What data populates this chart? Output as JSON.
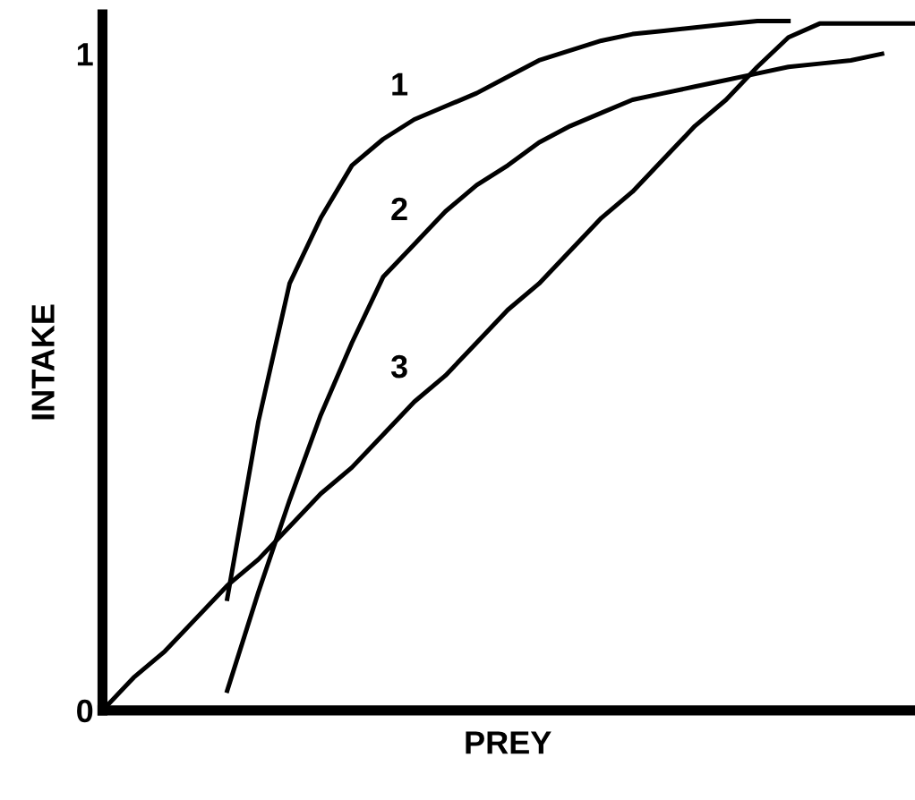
{
  "chart_data": {
    "type": "line",
    "xlabel": "PREY",
    "ylabel": "INTAKE",
    "categories": [
      null,
      null,
      null,
      null,
      null,
      null,
      null,
      null,
      null,
      null,
      null,
      null,
      null,
      null,
      null,
      null,
      null,
      null,
      null,
      null,
      null,
      null,
      null,
      null,
      null,
      null,
      null
    ],
    "series": [
      {
        "name": "1",
        "color": "#000000",
        "values": [
          null,
          null,
          null,
          null,
          0.17,
          0.44,
          0.65,
          0.75,
          0.83,
          0.87,
          0.9,
          0.92,
          0.94,
          0.965,
          0.99,
          1.005,
          1.02,
          1.03,
          1.035,
          1.04,
          1.045,
          1.05,
          1.05,
          null,
          null,
          null,
          null
        ]
      },
      {
        "name": "2",
        "color": "#000000",
        "values": [
          null,
          null,
          null,
          null,
          0.03,
          0.18,
          0.32,
          0.45,
          0.56,
          0.66,
          0.71,
          0.76,
          0.8,
          0.83,
          0.865,
          0.89,
          0.91,
          0.93,
          0.94,
          0.95,
          0.96,
          0.97,
          0.98,
          0.985,
          0.99,
          1.0,
          null
        ]
      },
      {
        "name": "3",
        "color": "#000000",
        "values": [
          0,
          0.05,
          0.09,
          0.14,
          0.19,
          0.23,
          0.28,
          0.33,
          0.37,
          0.42,
          0.47,
          0.51,
          0.56,
          0.61,
          0.65,
          0.7,
          0.75,
          0.79,
          0.84,
          0.89,
          0.93,
          0.98,
          1.025,
          1.046,
          1.046,
          1.046,
          1.046
        ]
      }
    ],
    "ylim": [
      0,
      1.06
    ],
    "yticks": [
      0,
      1
    ],
    "tick_labels": "y",
    "grid": false,
    "legend": false,
    "marker": "none",
    "line_style": "solid"
  }
}
